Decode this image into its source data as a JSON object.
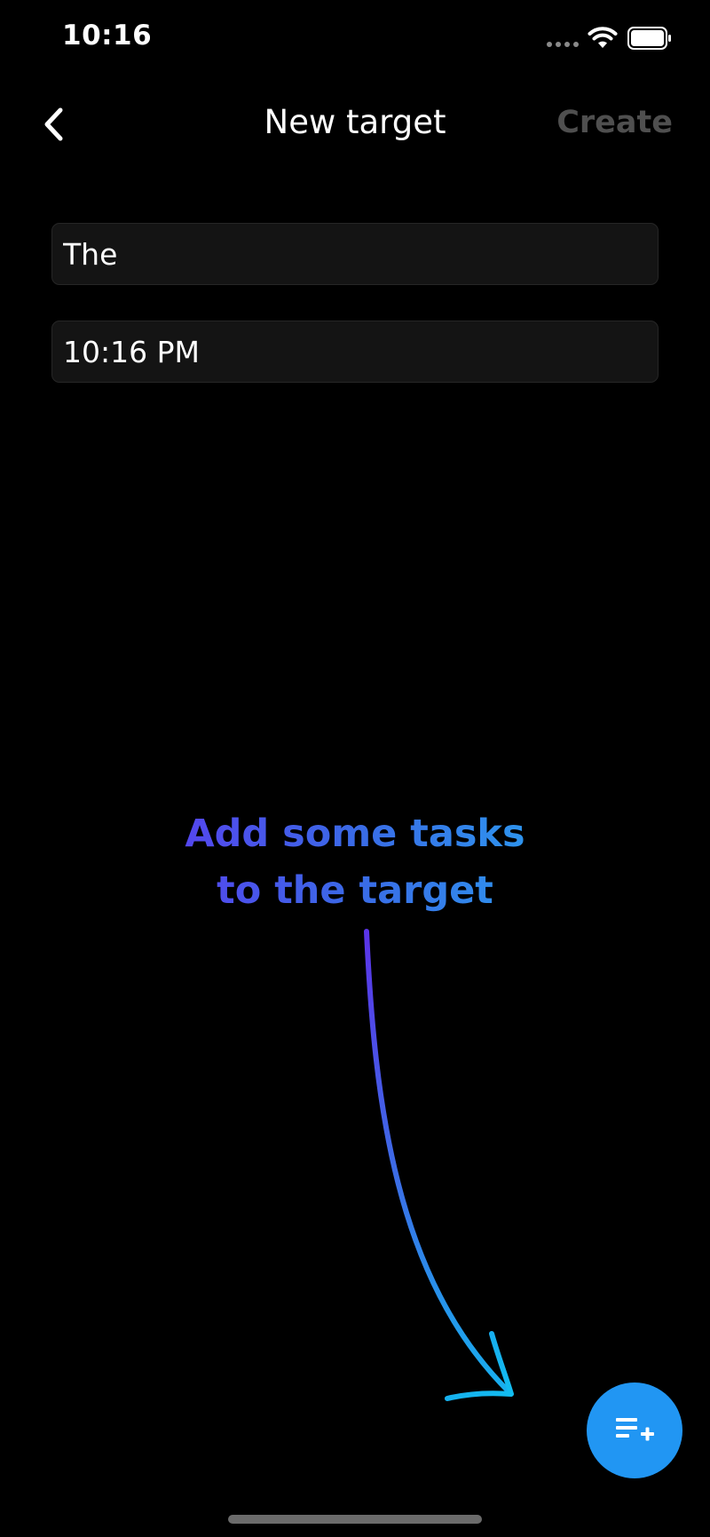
{
  "status_bar": {
    "time": "10:16"
  },
  "nav": {
    "title": "New target",
    "create_label": "Create",
    "back_icon": "chevron-left-icon"
  },
  "form": {
    "name_value": "The",
    "time_value": "10:16 PM"
  },
  "hint": {
    "line1": "Add some tasks",
    "line2": "to the target",
    "gradient_start": "#5b3cf0",
    "gradient_end": "#2aa0f0"
  },
  "fab": {
    "icon": "playlist-add-icon",
    "color": "#2196f3"
  }
}
